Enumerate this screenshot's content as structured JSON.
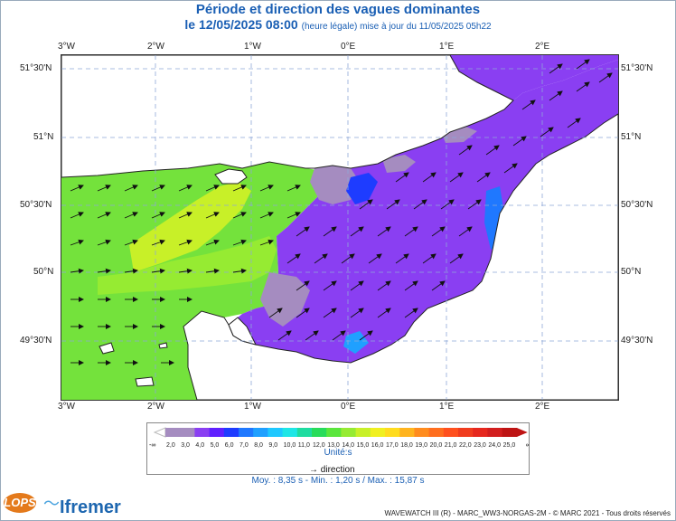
{
  "header": {
    "title": "Période et direction des vagues dominantes",
    "date": "le 12/05/2025 08:00",
    "update_note": "(heure légale) mise à jour du 11/05/2025 05h22"
  },
  "axes": {
    "lon_labels": [
      "3°W",
      "2°W",
      "1°W",
      "0°E",
      "1°E",
      "2°E"
    ],
    "lat_labels": [
      "51°30'N",
      "51°N",
      "50°30'N",
      "50°N",
      "49°30'N"
    ]
  },
  "legend": {
    "stops": [
      {
        "label": "2,0",
        "color": "#a58cc0"
      },
      {
        "label": "3,0",
        "color": "#a58cc0"
      },
      {
        "label": "4,0",
        "color": "#8a3ff2"
      },
      {
        "label": "5,0",
        "color": "#6020ff"
      },
      {
        "label": "6,0",
        "color": "#1e3cff"
      },
      {
        "label": "7,0",
        "color": "#1f78ff"
      },
      {
        "label": "8,0",
        "color": "#1fa0ff"
      },
      {
        "label": "9,0",
        "color": "#1ec8ff"
      },
      {
        "label": "10,0",
        "color": "#1ee6e6"
      },
      {
        "label": "11,0",
        "color": "#1edca0"
      },
      {
        "label": "12,0",
        "color": "#28dc5a"
      },
      {
        "label": "13,0",
        "color": "#5ae63c"
      },
      {
        "label": "14,0",
        "color": "#96eb32"
      },
      {
        "label": "15,0",
        "color": "#c8f028"
      },
      {
        "label": "16,0",
        "color": "#f0f020"
      },
      {
        "label": "17,0",
        "color": "#ffdc1e"
      },
      {
        "label": "18,0",
        "color": "#ffb41e"
      },
      {
        "label": "19,0",
        "color": "#ff8c1e"
      },
      {
        "label": "20,0",
        "color": "#ff6e1e"
      },
      {
        "label": "21,0",
        "color": "#ff501e"
      },
      {
        "label": "22,0",
        "color": "#f03c1e"
      },
      {
        "label": "23,0",
        "color": "#e6281e"
      },
      {
        "label": "24,0",
        "color": "#d21e1e"
      },
      {
        "label": "25,0",
        "color": "#be1414"
      }
    ],
    "low_end": "-∞",
    "high_end": "∞",
    "unit": "Unité:s",
    "direction_label": "direction"
  },
  "stats": {
    "text": "Moy. : 8,35 s   -   Min. : 1,20 s / Max. : 15,87 s"
  },
  "footer": {
    "text": "WAVEWATCH III (R) - MARC_WW3-NORGAS-2M - © MARC 2021 - Tous droits réservés"
  },
  "logos": {
    "lops": "LOPS",
    "ifremer": "Ifremer"
  }
}
